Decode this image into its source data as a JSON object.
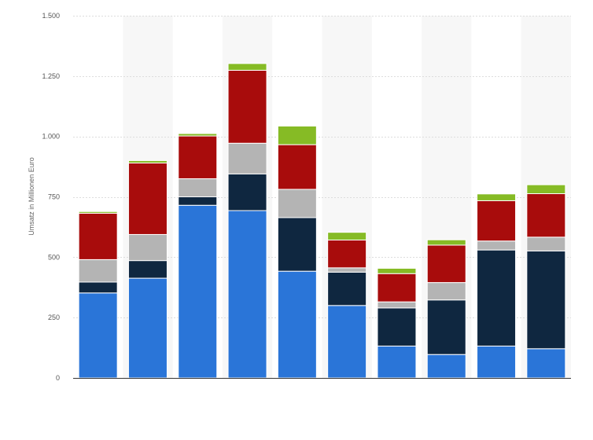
{
  "chart_data": {
    "type": "bar",
    "stacked": true,
    "title": "",
    "xlabel": "",
    "ylabel": "Umsatz in Millionen Euro",
    "ylim": [
      0,
      1500
    ],
    "yticks": [
      0,
      250,
      500,
      750,
      1000,
      1250,
      1500
    ],
    "ytick_labels": [
      "0",
      "250",
      "500",
      "750",
      "1.000",
      "1.250",
      "1.500"
    ],
    "grid": true,
    "categories": [
      "",
      "",
      "",
      "",
      "",
      "",
      "",
      "",
      "",
      ""
    ],
    "series": [
      {
        "color": "#2a75d8",
        "values": [
          352,
          413,
          715,
          693,
          442,
          300,
          132,
          97,
          132,
          121
        ]
      },
      {
        "color": "#0f2740",
        "values": [
          45,
          73,
          35,
          152,
          222,
          138,
          158,
          226,
          398,
          405
        ]
      },
      {
        "color": "#b4b4b4",
        "values": [
          93,
          108,
          75,
          127,
          117,
          18,
          25,
          72,
          37,
          57
        ]
      },
      {
        "color": "#a80c0c",
        "values": [
          192,
          296,
          177,
          302,
          185,
          115,
          117,
          155,
          167,
          180
        ]
      },
      {
        "color": "#86bb25",
        "values": [
          7,
          10,
          10,
          28,
          77,
          32,
          22,
          22,
          28,
          37
        ]
      }
    ]
  },
  "colors": {
    "background": "#ffffff",
    "band": "#f7f7f7",
    "grid": "#dddddd",
    "axis": "#333333",
    "tick_text": "#555555"
  }
}
